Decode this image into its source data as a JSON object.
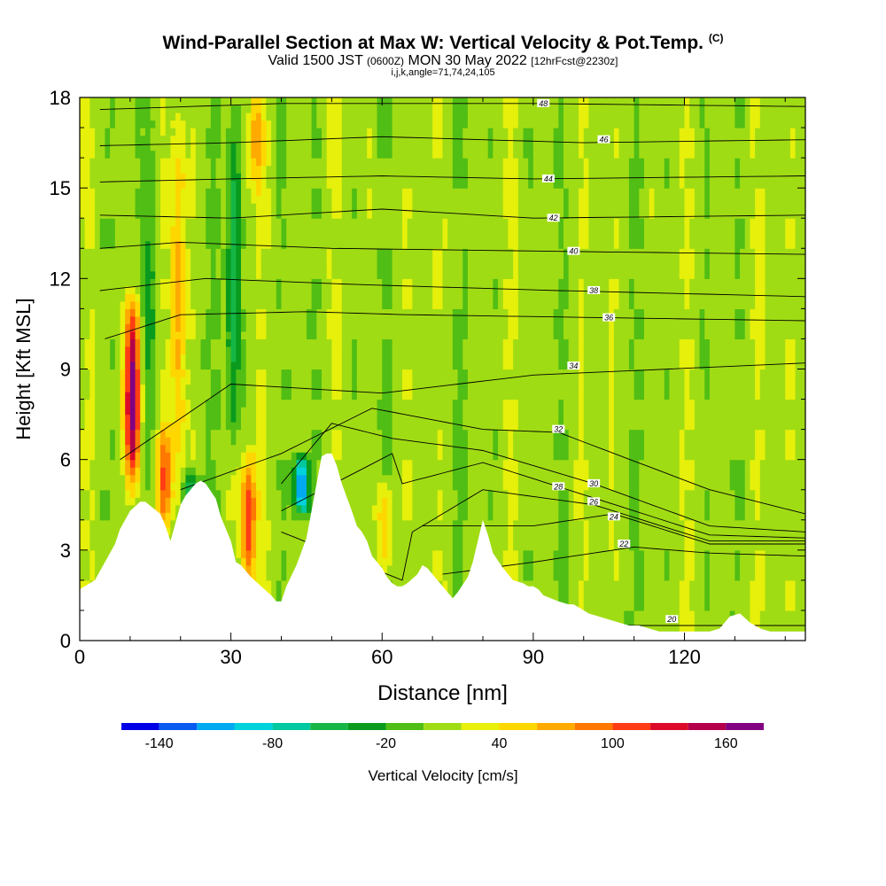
{
  "header": {
    "title": "Wind-Parallel Section at Max W: Vertical Velocity & Pot.Temp.",
    "copyright": "(C)",
    "valid_prefix": "Valid 1500 JST",
    "valid_utc": "(0600Z)",
    "valid_date": "MON 30 May 2022",
    "forecast": "[12hrFcst@2230z]",
    "indices": "i,j,k,angle=71,74,24,105"
  },
  "colorbar": {
    "title": "Vertical Velocity [cm/s]",
    "tick_labels": [
      "-140",
      "-80",
      "-20",
      "40",
      "100",
      "160"
    ],
    "tick_values": [
      -140,
      -80,
      -20,
      40,
      100,
      160
    ],
    "levels": [
      -160,
      -140,
      -120,
      -100,
      -80,
      -60,
      -40,
      -20,
      0,
      20,
      40,
      60,
      80,
      100,
      120,
      140,
      160,
      180
    ],
    "colors": [
      "#0000e6",
      "#0a5af0",
      "#00aaf0",
      "#00d2dc",
      "#00c8a0",
      "#16b646",
      "#0a9b1e",
      "#50be14",
      "#a0dc14",
      "#e6f00a",
      "#ffd700",
      "#ffaa00",
      "#ff7800",
      "#ff3c14",
      "#dc0a28",
      "#b4004b",
      "#820082"
    ]
  },
  "chart_data": {
    "type": "heatmap",
    "description_fields": "filled contours of vertical velocity with potential temperature contour lines",
    "xlabel": "Distance [nm]",
    "ylabel": "Height [Kft MSL]",
    "xlim": [
      0,
      144
    ],
    "ylim": [
      0,
      18
    ],
    "x_ticks": [
      0,
      30,
      60,
      90,
      120
    ],
    "x_tick_labels": [
      "0",
      "30",
      "60",
      "90",
      "120"
    ],
    "y_ticks": [
      0,
      3,
      6,
      9,
      12,
      15,
      18
    ],
    "y_tick_labels": [
      "0",
      "3",
      "6",
      "9",
      "12",
      "15",
      "18"
    ],
    "terrain": {
      "x": [
        0,
        3,
        5,
        7,
        8,
        10,
        12,
        13,
        16,
        17,
        18,
        19,
        20,
        21,
        23,
        24,
        25,
        27,
        28,
        30,
        31,
        32,
        33,
        34,
        36,
        38,
        39,
        40,
        41,
        43,
        45,
        46,
        47,
        48,
        49,
        50,
        51,
        52,
        54,
        55,
        56,
        57,
        58,
        60,
        61,
        62,
        63,
        64,
        65,
        67,
        68,
        69,
        70,
        72,
        73,
        74,
        75,
        77,
        78,
        79,
        80,
        81,
        82,
        84,
        86,
        88,
        89,
        90,
        91,
        92,
        95,
        97,
        98,
        100,
        101,
        103,
        105,
        107,
        109,
        111,
        113,
        115,
        117,
        119,
        121,
        123,
        125,
        127,
        129,
        131,
        133,
        135,
        137,
        140,
        144
      ],
      "y": [
        1.7,
        2.0,
        2.6,
        3.2,
        3.7,
        4.3,
        4.6,
        4.6,
        4.2,
        3.8,
        3.3,
        3.9,
        4.5,
        4.8,
        5.2,
        5.3,
        5.2,
        4.7,
        4.1,
        3.3,
        2.6,
        2.5,
        2.3,
        2.1,
        1.8,
        1.5,
        1.3,
        1.3,
        1.8,
        2.5,
        3.4,
        4.3,
        5.2,
        6.1,
        6.2,
        6.2,
        5.8,
        5.2,
        4.3,
        3.8,
        3.6,
        3.3,
        2.8,
        2.4,
        2.1,
        1.9,
        1.8,
        1.8,
        1.9,
        2.2,
        2.5,
        2.4,
        2.2,
        1.8,
        1.6,
        1.4,
        1.6,
        2.1,
        2.6,
        3.3,
        4.0,
        3.5,
        2.9,
        2.4,
        2.0,
        1.9,
        1.8,
        1.8,
        1.7,
        1.5,
        1.3,
        1.2,
        1.2,
        1.0,
        0.9,
        0.8,
        0.7,
        0.6,
        0.5,
        0.5,
        0.4,
        0.3,
        0.3,
        0.3,
        0.3,
        0.3,
        0.3,
        0.4,
        0.8,
        0.9,
        0.6,
        0.4,
        0.3,
        0.3,
        0.3
      ]
    },
    "updraft_cores": [
      {
        "x": 10.5,
        "y_bottom": 5.0,
        "y_top": 11.4,
        "w_max": 170
      },
      {
        "x": 16.8,
        "y_bottom": 4.0,
        "y_top": 6.8,
        "w_max": 80
      },
      {
        "x": 19.5,
        "y_bottom": 4.5,
        "y_top": 18.0,
        "w_max": 60
      },
      {
        "x": 33.5,
        "y_bottom": 2.0,
        "y_top": 6.0,
        "w_max": 110
      },
      {
        "x": 35.0,
        "y_bottom": 15.0,
        "y_top": 18.0,
        "w_max": 60
      },
      {
        "x": 60.5,
        "y_bottom": 2.5,
        "y_top": 5.0,
        "w_max": 60
      }
    ],
    "downdraft_cores": [
      {
        "x": 14.0,
        "y_bottom": 4.5,
        "y_top": 18.0,
        "w_min": -40
      },
      {
        "x": 22.0,
        "y_bottom": 4.3,
        "y_top": 5.3,
        "w_min": -80
      },
      {
        "x": 30.5,
        "y_bottom": 6.0,
        "y_top": 18.0,
        "w_min": -70
      },
      {
        "x": 44.0,
        "y_bottom": 4.5,
        "y_top": 5.8,
        "w_min": -140
      }
    ],
    "theta_contours": [
      {
        "label": "20",
        "x": [
          78,
          95,
          110,
          125,
          144
        ],
        "y": [
          0.6,
          0.5,
          0.5,
          0.5,
          0.5
        ],
        "label_at": [
          117.5,
          0.7
        ]
      },
      {
        "label": "22",
        "x": [
          72,
          90,
          110,
          125,
          144
        ],
        "y": [
          2.2,
          2.6,
          3.1,
          2.9,
          2.8
        ],
        "label_at": [
          108,
          3.2
        ]
      },
      {
        "label": "24",
        "x": [
          68,
          90,
          106,
          125,
          144
        ],
        "y": [
          3.8,
          3.8,
          4.2,
          3.2,
          3.2
        ],
        "label_at": [
          106,
          4.1
        ]
      },
      {
        "label": "26",
        "x": [
          40,
          64,
          66,
          80,
          102,
          125,
          144
        ],
        "y": [
          3.6,
          2.0,
          3.6,
          5.0,
          4.5,
          3.3,
          3.3
        ],
        "label_at": [
          102,
          4.6
        ]
      },
      {
        "label": "28",
        "x": [
          40,
          62,
          64,
          80,
          95,
          125,
          144
        ],
        "y": [
          4.3,
          6.2,
          5.2,
          5.9,
          5.1,
          3.5,
          3.4
        ],
        "label_at": [
          95,
          5.1
        ]
      },
      {
        "label": "30",
        "x": [
          40,
          50,
          62,
          80,
          102,
          125,
          144
        ],
        "y": [
          5.2,
          7.2,
          6.7,
          6.3,
          5.2,
          3.8,
          3.6
        ],
        "label_at": [
          102,
          5.2
        ]
      },
      {
        "label": "32",
        "x": [
          20,
          40,
          58,
          80,
          95,
          125,
          144
        ],
        "y": [
          5.0,
          6.2,
          7.7,
          7.0,
          6.9,
          5.0,
          4.2
        ],
        "label_at": [
          95,
          7.0
        ]
      },
      {
        "label": "34",
        "x": [
          8,
          30,
          60,
          90,
          144
        ],
        "y": [
          6.0,
          8.5,
          8.2,
          8.8,
          9.2
        ],
        "label_at": [
          98,
          9.1
        ]
      },
      {
        "label": "36",
        "x": [
          5,
          20,
          45,
          65,
          105,
          144
        ],
        "y": [
          10.0,
          10.8,
          10.9,
          10.8,
          10.7,
          10.6
        ],
        "label_at": [
          105,
          10.7
        ]
      },
      {
        "label": "38",
        "x": [
          4,
          25,
          55,
          95,
          144
        ],
        "y": [
          11.6,
          12.0,
          11.8,
          11.6,
          11.4
        ],
        "label_at": [
          102,
          11.6
        ]
      },
      {
        "label": "40",
        "x": [
          4,
          20,
          50,
          95,
          144
        ],
        "y": [
          13.0,
          13.2,
          13.0,
          12.9,
          12.8
        ],
        "label_at": [
          98,
          12.9
        ]
      },
      {
        "label": "42",
        "x": [
          4,
          30,
          60,
          90,
          144
        ],
        "y": [
          14.1,
          14.0,
          14.3,
          14.0,
          14.1
        ],
        "label_at": [
          94,
          14.0
        ]
      },
      {
        "label": "44",
        "x": [
          4,
          30,
          60,
          90,
          144
        ],
        "y": [
          15.2,
          15.3,
          15.4,
          15.3,
          15.4
        ],
        "label_at": [
          93,
          15.3
        ]
      },
      {
        "label": "46",
        "x": [
          4,
          30,
          60,
          100,
          144
        ],
        "y": [
          16.4,
          16.5,
          16.7,
          16.5,
          16.6
        ],
        "label_at": [
          104,
          16.6
        ]
      },
      {
        "label": "48",
        "x": [
          4,
          40,
          90,
          144
        ],
        "y": [
          17.6,
          17.8,
          17.8,
          17.7
        ],
        "label_at": [
          92,
          17.8
        ]
      }
    ]
  }
}
